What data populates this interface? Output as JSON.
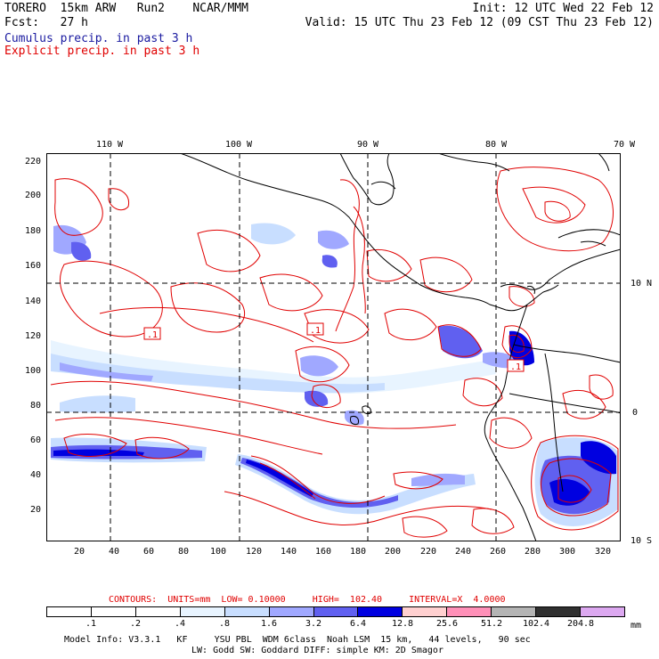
{
  "header": {
    "model": "TORERO  15km ARW   Run2    NCAR/MMM",
    "init": "Init: 12 UTC Wed 22 Feb 12",
    "fcst": "Fcst:   27 h",
    "valid": "Valid: 15 UTC Thu 23 Feb 12 (09 CST Thu 23 Feb 12)",
    "field1": "Cumulus precip. in past 3 h",
    "field2": "Explicit precip. in past 3 h",
    "field1_color": "#1a1aa0",
    "field2_color": "#e00000"
  },
  "map": {
    "lon_labels": [
      "110 W",
      "100 W",
      "90 W",
      "80 W",
      "70 W"
    ],
    "lat_labels": [
      "10 N",
      "0",
      "10 S"
    ],
    "y_ticks": [
      "220",
      "200",
      "180",
      "160",
      "140",
      "120",
      "100",
      "80",
      "60",
      "40",
      "20"
    ],
    "x_ticks": [
      "20",
      "40",
      "60",
      "80",
      "100",
      "120",
      "140",
      "160",
      "180",
      "200",
      "220",
      "240",
      "260",
      "280",
      "300",
      "320"
    ],
    "contour_labels": [
      ".1",
      ".1",
      ".1"
    ]
  },
  "footer": {
    "contours": "CONTOURS:  UNITS=mm  LOW= 0.10000     HIGH=  102.40     INTERVAL=X  4.0000",
    "scale_labels": [
      ".1",
      ".2",
      ".4",
      ".8",
      "1.6",
      "3.2",
      "6.4",
      "12.8",
      "25.6",
      "51.2",
      "102.4",
      "204.8"
    ],
    "scale_unit": "mm",
    "scale_colors": [
      "#ffffff",
      "#ffffff",
      "#ffffff",
      "#e8f4ff",
      "#c8deff",
      "#a0a8ff",
      "#6060f0",
      "#0000e0",
      "#ffd0d0",
      "#ff90b8",
      "#b4b4b4",
      "#303030",
      "#dca8f0"
    ],
    "model_info": "Model Info: V3.3.1   KF     YSU PBL  WDM 6class  Noah LSM  15 km,   44 levels,   90 sec",
    "model_info2": "LW: Godd SW: Goddard DIFF: simple KM: 2D Smagor"
  }
}
